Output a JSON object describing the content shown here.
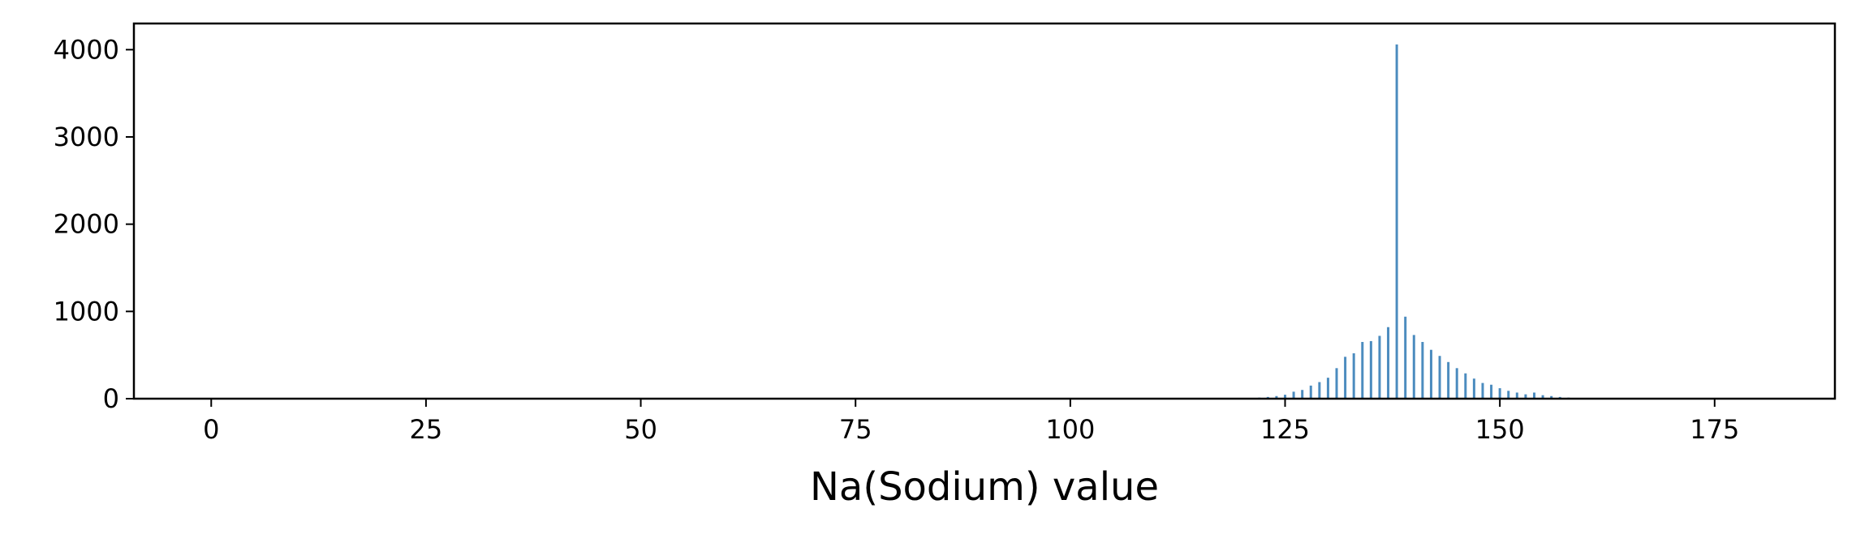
{
  "chart_data": {
    "type": "bar",
    "title": "",
    "xlabel": "Na(Sodium) value",
    "ylabel": "",
    "xlim": [
      -9,
      189
    ],
    "ylim": [
      0,
      4300
    ],
    "grid": false,
    "bar_color": "#4c8cbf",
    "x_ticks": [
      0,
      25,
      50,
      75,
      100,
      125,
      150,
      175
    ],
    "y_ticks": [
      0,
      1000,
      2000,
      3000,
      4000
    ],
    "x": [
      120,
      121,
      122,
      123,
      124,
      125,
      126,
      127,
      128,
      129,
      130,
      131,
      132,
      133,
      134,
      135,
      136,
      137,
      138,
      139,
      140,
      141,
      142,
      143,
      144,
      145,
      146,
      147,
      148,
      149,
      150,
      151,
      152,
      153,
      154,
      155,
      156,
      157,
      158,
      159,
      160
    ],
    "values": [
      5,
      8,
      12,
      20,
      30,
      45,
      80,
      100,
      150,
      190,
      240,
      350,
      480,
      520,
      650,
      660,
      720,
      820,
      4060,
      940,
      730,
      650,
      560,
      490,
      420,
      350,
      290,
      230,
      180,
      160,
      120,
      90,
      70,
      50,
      70,
      40,
      30,
      20,
      12,
      8,
      5
    ]
  }
}
